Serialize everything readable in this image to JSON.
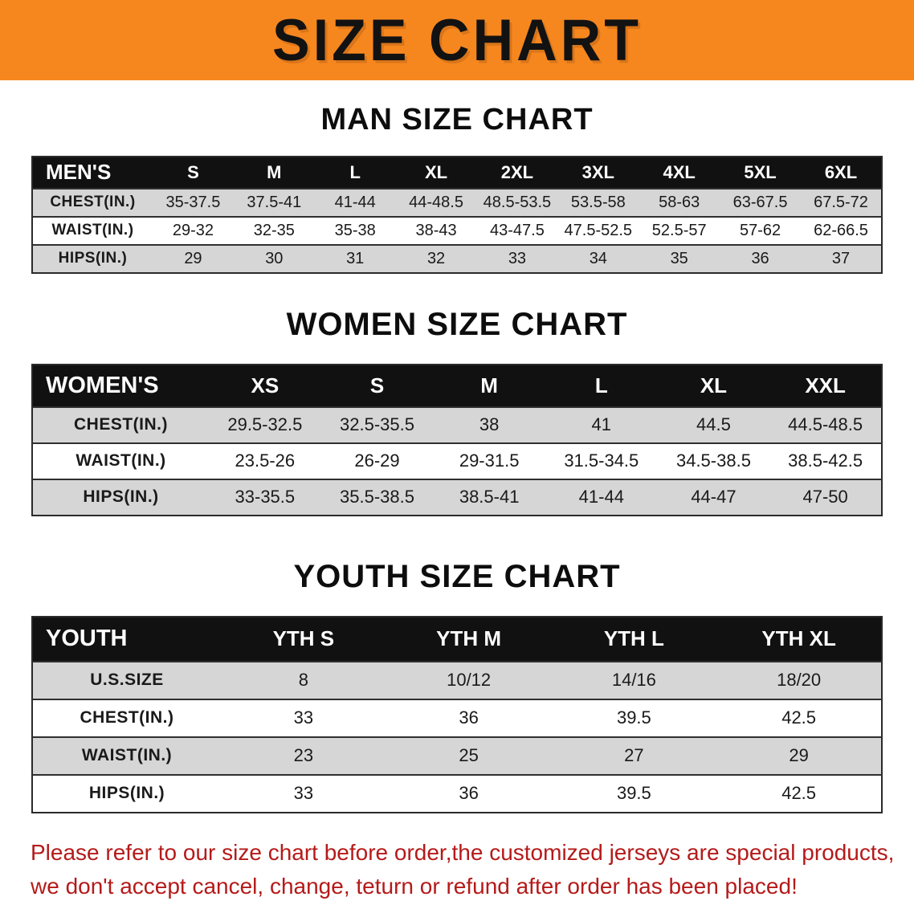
{
  "banner": {
    "title": "SIZE CHART"
  },
  "colors": {
    "banner_bg": "#f6871f",
    "table_header_bg": "#111111",
    "row_alt": "#d6d6d6",
    "disclaimer_color": "#b51a1a"
  },
  "tables": [
    {
      "id": "men",
      "heading": "MAN SIZE CHART",
      "header": [
        "MEN'S",
        "S",
        "M",
        "L",
        "XL",
        "2XL",
        "3XL",
        "4XL",
        "5XL",
        "6XL"
      ],
      "rows": [
        [
          "CHEST(IN.)",
          "35-37.5",
          "37.5-41",
          "41-44",
          "44-48.5",
          "48.5-53.5",
          "53.5-58",
          "58-63",
          "63-67.5",
          "67.5-72"
        ],
        [
          "WAIST(IN.)",
          "29-32",
          "32-35",
          "35-38",
          "38-43",
          "43-47.5",
          "47.5-52.5",
          "52.5-57",
          "57-62",
          "62-66.5"
        ],
        [
          "HIPS(IN.)",
          "29",
          "30",
          "31",
          "32",
          "33",
          "34",
          "35",
          "36",
          "37"
        ]
      ]
    },
    {
      "id": "women",
      "heading": "WOMEN SIZE CHART",
      "header": [
        "WOMEN'S",
        "XS",
        "S",
        "M",
        "L",
        "XL",
        "XXL"
      ],
      "rows": [
        [
          "CHEST(IN.)",
          "29.5-32.5",
          "32.5-35.5",
          "38",
          "41",
          "44.5",
          "44.5-48.5"
        ],
        [
          "WAIST(IN.)",
          "23.5-26",
          "26-29",
          "29-31.5",
          "31.5-34.5",
          "34.5-38.5",
          "38.5-42.5"
        ],
        [
          "HIPS(IN.)",
          "33-35.5",
          "35.5-38.5",
          "38.5-41",
          "41-44",
          "44-47",
          "47-50"
        ]
      ]
    },
    {
      "id": "youth",
      "heading": "YOUTH SIZE CHART",
      "header": [
        "YOUTH",
        "YTH S",
        "YTH M",
        "YTH L",
        "YTH XL"
      ],
      "rows": [
        [
          "U.S.SIZE",
          "8",
          "10/12",
          "14/16",
          "18/20"
        ],
        [
          "CHEST(IN.)",
          "33",
          "36",
          "39.5",
          "42.5"
        ],
        [
          "WAIST(IN.)",
          "23",
          "25",
          "27",
          "29"
        ],
        [
          "HIPS(IN.)",
          "33",
          "36",
          "39.5",
          "42.5"
        ]
      ]
    }
  ],
  "disclaimer": {
    "line1": "Please refer to our size chart before order,the customized jerseys are special products,",
    "line2": "we don't accept cancel, change, teturn or refund after order has been placed!"
  }
}
